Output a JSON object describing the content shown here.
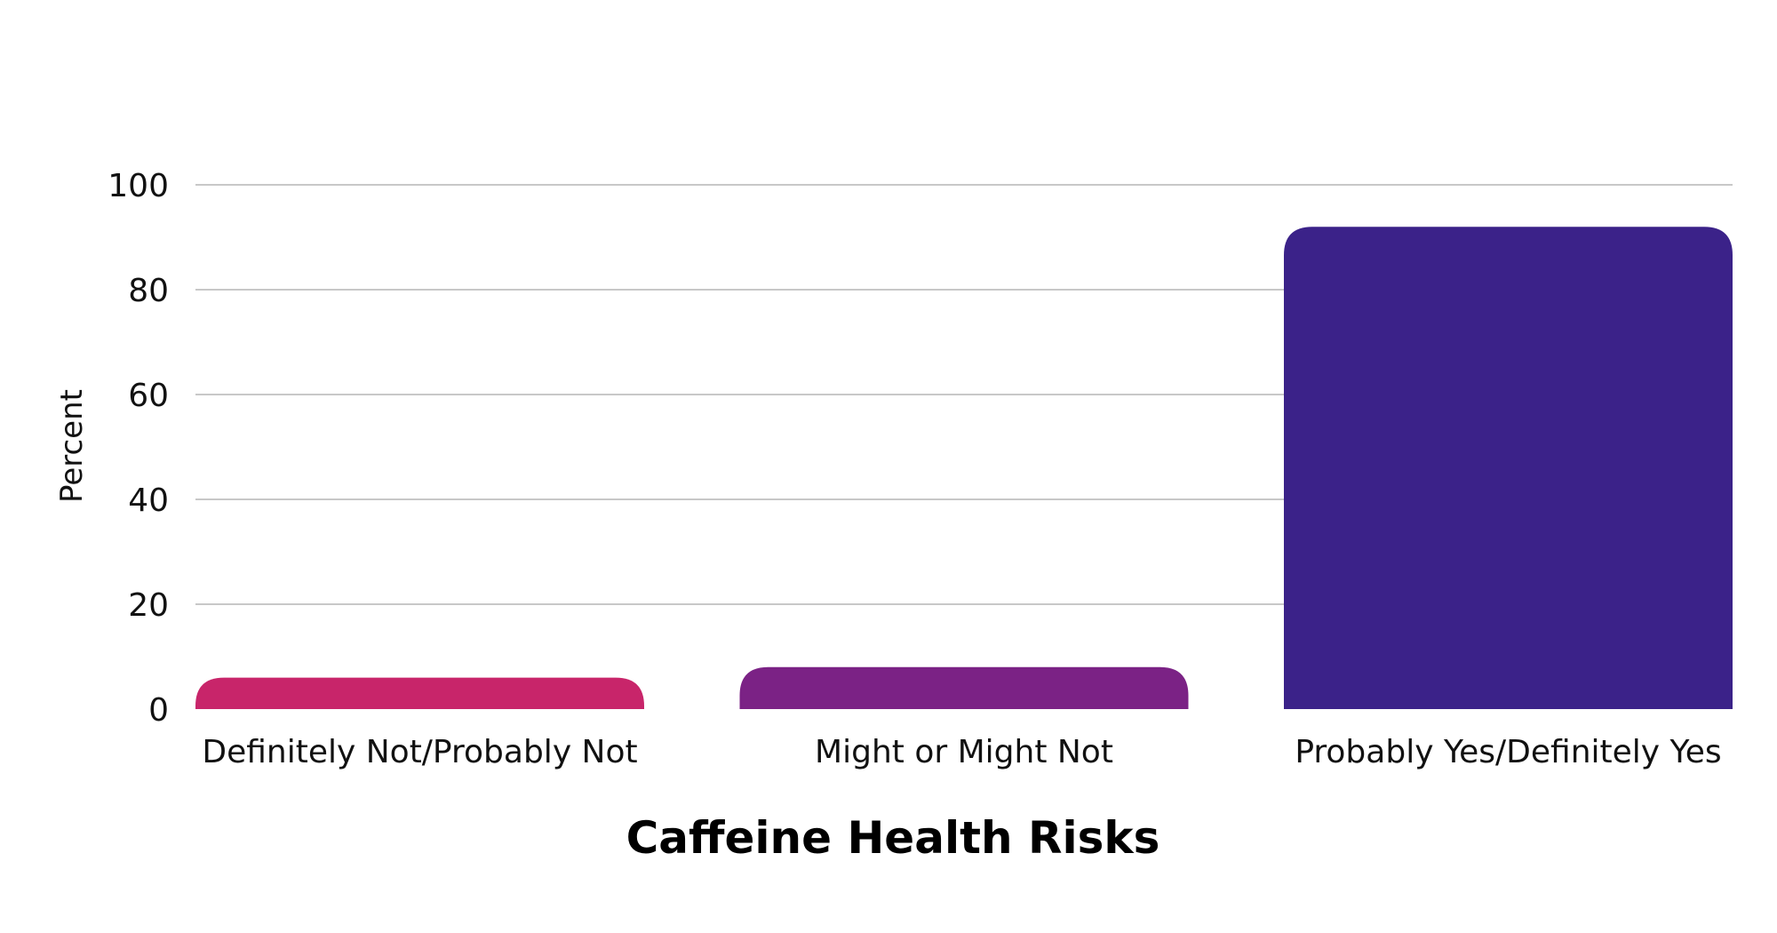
{
  "chart_data": {
    "type": "bar",
    "title": "Caffeine Health Risks",
    "xlabel": "Caffeine Health Risks",
    "ylabel": "Percent",
    "ylim": [
      0,
      100
    ],
    "yticks": [
      0,
      20,
      40,
      60,
      80,
      100
    ],
    "ytick_labels": [
      "0",
      "20",
      "40",
      "60",
      "80",
      "100"
    ],
    "grid": true,
    "categories": [
      "Definitely Not/Probably Not",
      "Might or Might Not",
      "Probably Yes/Definitely Yes"
    ],
    "values": [
      6,
      8,
      92
    ],
    "colors": [
      "#c8256a",
      "#7b2285",
      "#3b2289"
    ]
  }
}
